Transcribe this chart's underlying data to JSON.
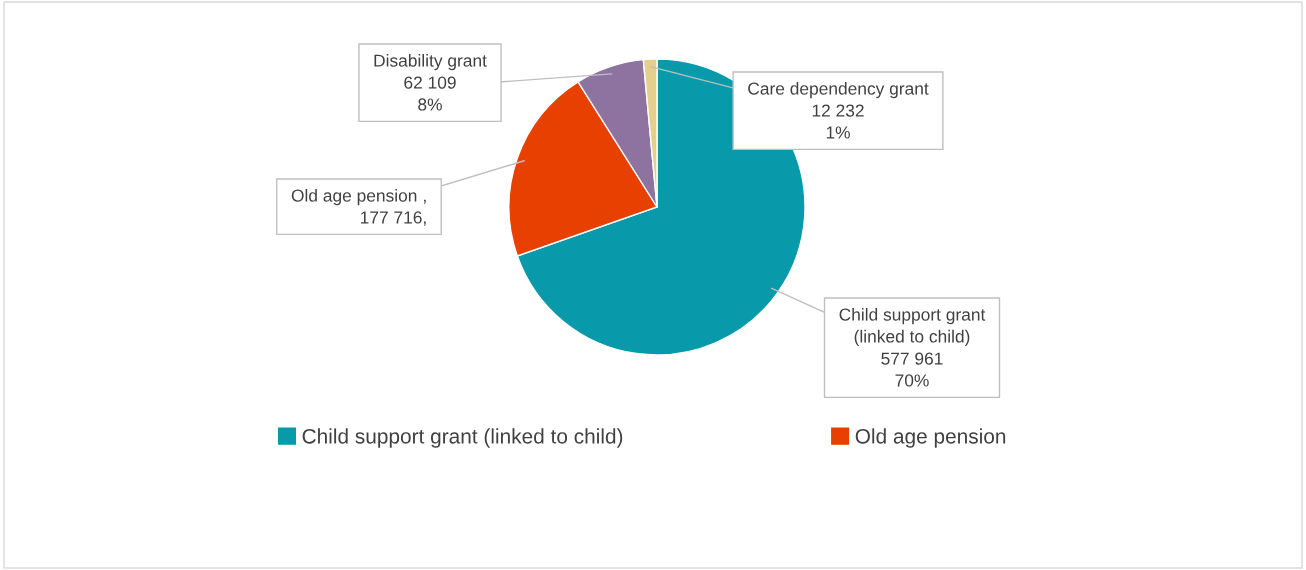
{
  "chart_data": {
    "type": "pie",
    "categories": [
      "Child support grant (linked to child)",
      "Old age pension",
      "Disability grant",
      "Care dependency grant"
    ],
    "values": [
      577961,
      177716,
      62109,
      12232
    ],
    "colors": [
      "#0899aa",
      "#e84000",
      "#8e73a0",
      "#e6cf8c"
    ],
    "value_labels": [
      "577 961\n70%",
      " ,\n177 716,",
      "62 109\n8%",
      "12 232\n1%"
    ],
    "legend": "bottom"
  }
}
